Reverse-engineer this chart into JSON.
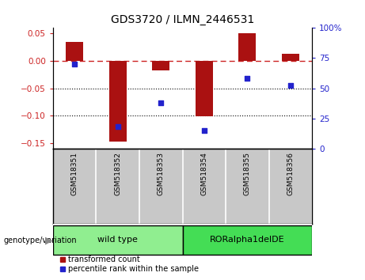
{
  "title": "GDS3720 / ILMN_2446531",
  "samples": [
    "GSM518351",
    "GSM518352",
    "GSM518353",
    "GSM518354",
    "GSM518355",
    "GSM518356"
  ],
  "bar_values": [
    0.035,
    -0.148,
    -0.018,
    -0.102,
    0.05,
    0.013
  ],
  "percentile_values": [
    70,
    18,
    38,
    15,
    58,
    52
  ],
  "groups": [
    {
      "label": "wild type",
      "samples": [
        0,
        1,
        2
      ],
      "color": "#90EE90"
    },
    {
      "label": "RORalpha1delDE",
      "samples": [
        3,
        4,
        5
      ],
      "color": "#44DD55"
    }
  ],
  "ylim_left": [
    -0.16,
    0.06
  ],
  "ylim_right": [
    0,
    100
  ],
  "yticks_left": [
    0.05,
    0,
    -0.05,
    -0.1,
    -0.15
  ],
  "yticks_right": [
    100,
    75,
    50,
    25,
    0
  ],
  "bar_color": "#AA1111",
  "dot_color": "#2222CC",
  "background_color": "#FFFFFF",
  "grid_color": "#000000",
  "zero_line_color": "#CC2222",
  "sample_bg_color": "#C8C8C8",
  "group_label": "genotype/variation"
}
